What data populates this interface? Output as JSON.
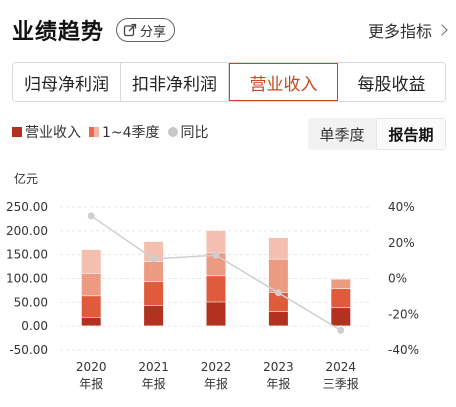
{
  "header": {
    "title": "业绩趋势",
    "share_label": "分享",
    "more_label": "更多指标"
  },
  "tabs": [
    {
      "label": "归母净利润",
      "active": false
    },
    {
      "label": "扣非净利润",
      "active": false
    },
    {
      "label": "营业收入",
      "active": true
    },
    {
      "label": "每股收益",
      "active": false
    }
  ],
  "legend": {
    "total": "营业收入",
    "quarters": "1~4季度",
    "yoy": "同比"
  },
  "period": {
    "single": "单季度",
    "report": "报告期",
    "active": "report"
  },
  "colors": {
    "q1": "#b3311f",
    "q2": "#e05a3c",
    "q3": "#ec9a82",
    "q4": "#f5bfb0",
    "yoy_line": "#cfcfcf",
    "accent": "#c9481f"
  },
  "chart_data": {
    "type": "bar",
    "ylabel": "亿元",
    "left_ticks": [
      "250.00",
      "200.00",
      "150.00",
      "100.00",
      "50.00",
      "0.00",
      "-50.00"
    ],
    "right_ticks": [
      "40%",
      "20%",
      "0%",
      "-20%",
      "-40%"
    ],
    "ylim": [
      -50,
      250
    ],
    "y2lim": [
      -40,
      40
    ],
    "categories": [
      {
        "year": "2020",
        "type": "年报"
      },
      {
        "year": "2021",
        "type": "年报"
      },
      {
        "year": "2022",
        "type": "年报"
      },
      {
        "year": "2023",
        "type": "年报"
      },
      {
        "year": "2024",
        "type": "三季报"
      }
    ],
    "series": [
      {
        "name": "一季度",
        "values": [
          18,
          43,
          50,
          30,
          38
        ]
      },
      {
        "name": "二季度",
        "values": [
          45,
          50,
          55,
          40,
          40
        ]
      },
      {
        "name": "三季度",
        "values": [
          47,
          42,
          48,
          70,
          20
        ]
      },
      {
        "name": "四季度",
        "values": [
          50,
          42,
          47,
          45,
          0
        ]
      }
    ],
    "yoy_percent": [
      35,
      11,
      13,
      -8,
      -29
    ],
    "grid": true,
    "stacked": true
  }
}
